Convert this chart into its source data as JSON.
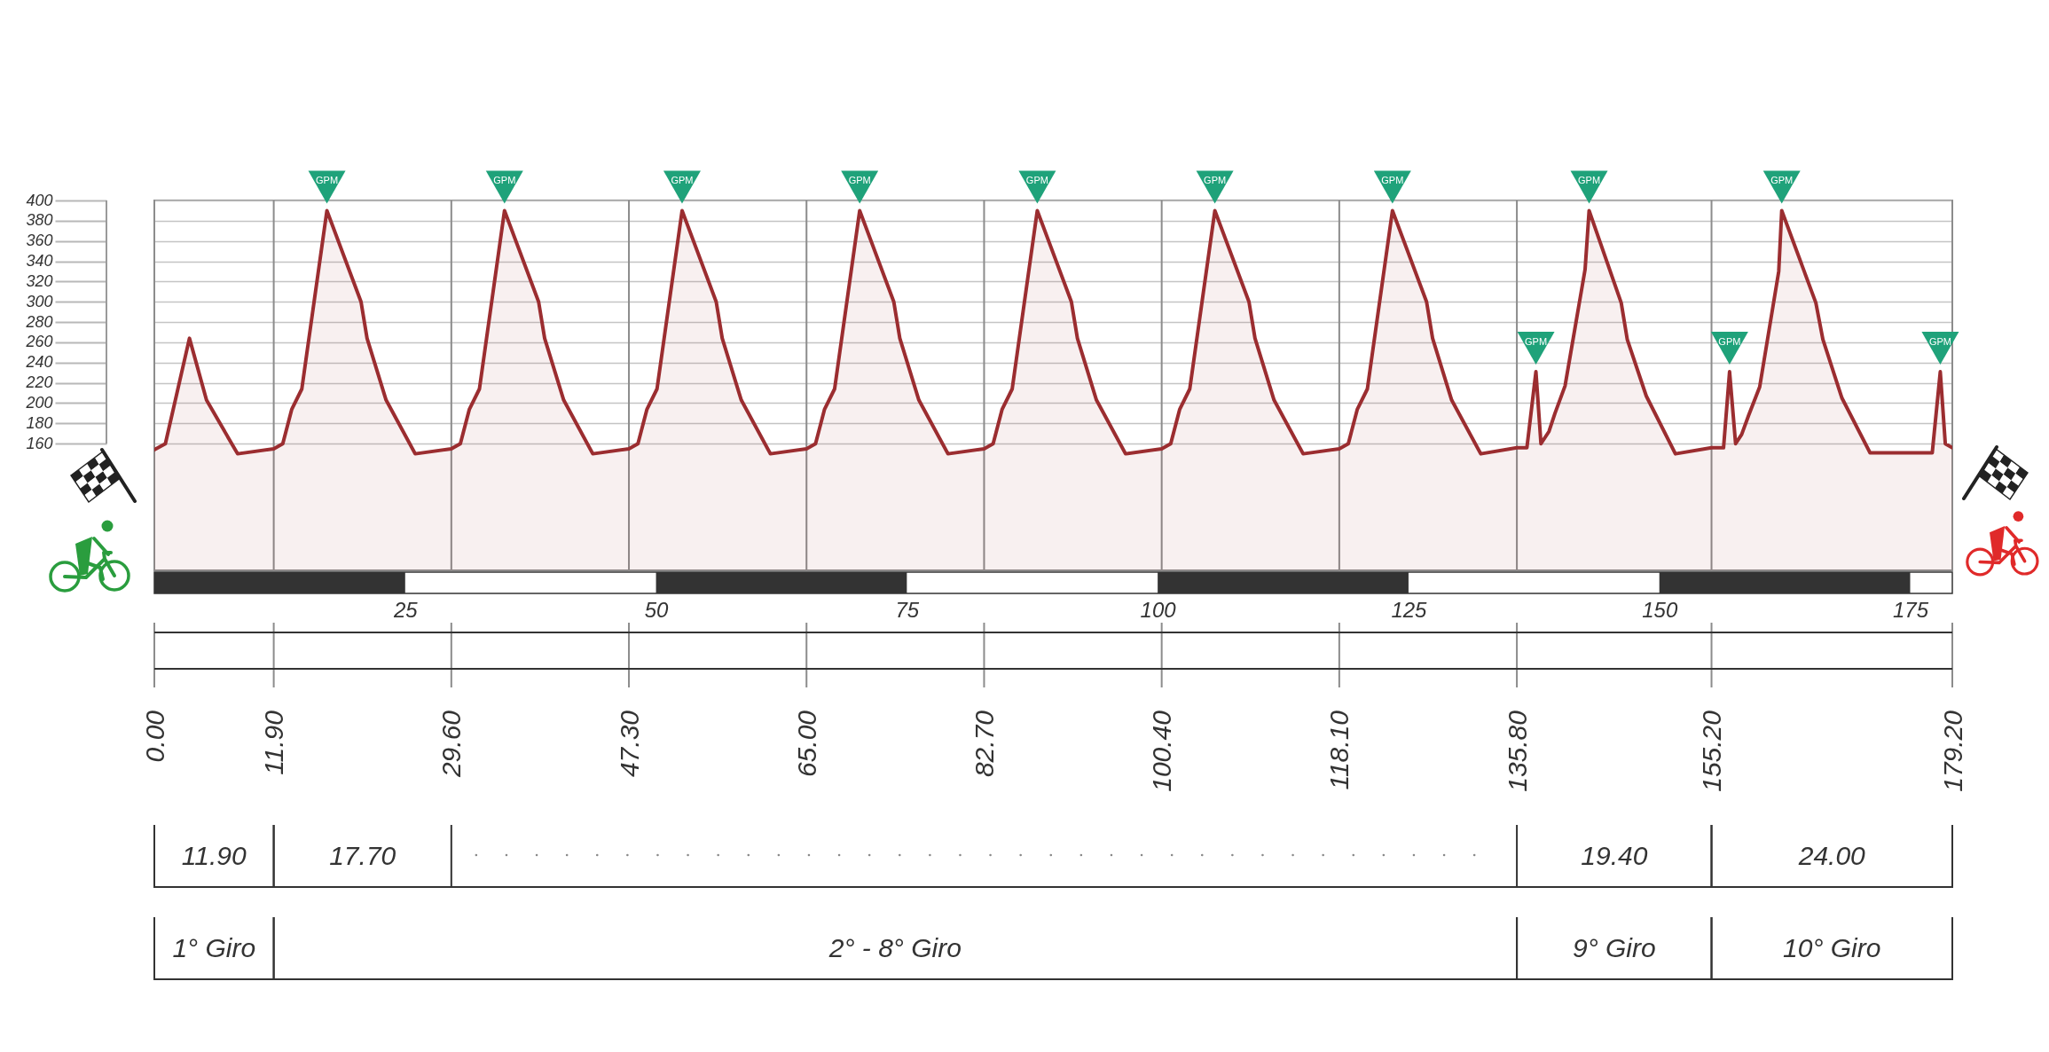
{
  "chart_data": {
    "type": "area",
    "x": [
      0,
      1.1,
      3.5,
      5.2,
      8.3,
      11.9,
      12.8,
      13.7,
      14.7,
      17.2,
      20.6,
      21.2,
      23.1,
      26.0,
      29.6,
      30.5,
      31.4,
      32.4,
      34.9,
      38.3,
      38.9,
      40.8,
      43.7,
      47.3,
      48.2,
      49.1,
      50.1,
      52.6,
      56.0,
      56.6,
      58.5,
      61.4,
      65.0,
      65.9,
      66.8,
      67.8,
      70.3,
      73.7,
      74.3,
      76.2,
      79.1,
      82.7,
      83.6,
      84.5,
      85.5,
      88.0,
      91.4,
      92.0,
      93.9,
      96.8,
      100.4,
      101.3,
      102.2,
      103.2,
      105.7,
      109.1,
      109.7,
      111.6,
      114.5,
      118.1,
      119.0,
      119.9,
      120.9,
      123.4,
      126.8,
      127.4,
      129.3,
      132.2,
      135.8,
      136.8,
      137.7,
      138.2,
      139.0,
      139.6,
      140.6,
      142.6,
      143.0,
      146.2,
      146.8,
      148.7,
      151.6,
      155.2,
      156.4,
      157.0,
      157.6,
      158.2,
      158.9,
      160.0,
      161.9,
      162.2,
      165.6,
      166.3,
      168.2,
      171.0,
      177.2,
      178.0,
      178.5,
      179.2
    ],
    "values": [
      154,
      160,
      264,
      203,
      150,
      155,
      160,
      194,
      214,
      390,
      300,
      264,
      203,
      150,
      155,
      160,
      194,
      214,
      390,
      300,
      264,
      203,
      150,
      155,
      160,
      194,
      214,
      390,
      300,
      264,
      203,
      150,
      155,
      160,
      194,
      214,
      390,
      300,
      264,
      203,
      150,
      155,
      160,
      194,
      214,
      390,
      300,
      264,
      203,
      150,
      155,
      160,
      194,
      214,
      390,
      300,
      264,
      203,
      150,
      155,
      160,
      194,
      214,
      390,
      300,
      264,
      203,
      150,
      156,
      156,
      231,
      160,
      172,
      190,
      217,
      332,
      390,
      299,
      263,
      207,
      150,
      156,
      156,
      231,
      160,
      169,
      188,
      216,
      330,
      390,
      299,
      263,
      205,
      151,
      151,
      231,
      160,
      156
    ],
    "color": "#9b2d30",
    "xlim": [
      0,
      179.2
    ],
    "xticks": [
      25,
      50,
      75,
      100,
      125,
      150,
      175
    ],
    "ylim": [
      35,
      400
    ],
    "yticks": [
      160,
      180,
      200,
      220,
      240,
      260,
      280,
      300,
      320,
      340,
      360,
      380,
      400
    ],
    "grid": "y",
    "ref_lines": [
      {
        "axis": "x",
        "value": 0,
        "label": "0.00",
        "color": "#8c8c8c"
      },
      {
        "axis": "x",
        "value": 11.9,
        "label": "11.90",
        "color": "#8c8c8c"
      },
      {
        "axis": "x",
        "value": 29.6,
        "label": "29.60",
        "color": "#8c8c8c"
      },
      {
        "axis": "x",
        "value": 47.3,
        "label": "47.30",
        "color": "#8c8c8c"
      },
      {
        "axis": "x",
        "value": 65,
        "label": "65.00",
        "color": "#8c8c8c"
      },
      {
        "axis": "x",
        "value": 82.7,
        "label": "82.70",
        "color": "#8c8c8c"
      },
      {
        "axis": "x",
        "value": 100.4,
        "label": "100.40",
        "color": "#8c8c8c"
      },
      {
        "axis": "x",
        "value": 118.1,
        "label": "118.10",
        "color": "#8c8c8c"
      },
      {
        "axis": "x",
        "value": 135.8,
        "label": "135.80",
        "color": "#8c8c8c"
      },
      {
        "axis": "x",
        "value": 155.2,
        "label": "155.20",
        "color": "#8c8c8c"
      },
      {
        "axis": "x",
        "value": 179.2,
        "label": "179.20",
        "color": "#8c8c8c"
      }
    ],
    "annotations": [
      {
        "text": "GPM",
        "x": 17.2,
        "y": 390
      },
      {
        "text": "GPM",
        "x": 34.9,
        "y": 390
      },
      {
        "text": "GPM",
        "x": 52.6,
        "y": 390
      },
      {
        "text": "GPM",
        "x": 70.3,
        "y": 390
      },
      {
        "text": "GPM",
        "x": 88.0,
        "y": 390
      },
      {
        "text": "GPM",
        "x": 105.7,
        "y": 390
      },
      {
        "text": "GPM",
        "x": 123.4,
        "y": 390
      },
      {
        "text": "GPM",
        "x": 137.7,
        "y": 231
      },
      {
        "text": "GPM",
        "x": 143.0,
        "y": 390
      },
      {
        "text": "GPM",
        "x": 157.0,
        "y": 231
      },
      {
        "text": "GPM",
        "x": 162.2,
        "y": 390
      },
      {
        "text": "GPM",
        "x": 178.0,
        "y": 231
      },
      "11.90",
      "17.70",
      "19.40",
      "24.00",
      "1° Giro",
      "2° - 8° Giro",
      "9° Giro",
      "10° Giro"
    ]
  }
}
